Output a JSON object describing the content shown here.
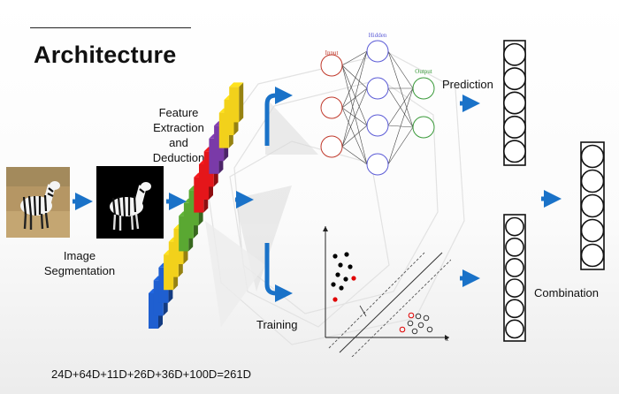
{
  "slide": {
    "title": "Architecture",
    "labels": {
      "feature_extraction": [
        "Feature",
        "Extraction",
        "and",
        "Deduction"
      ],
      "image_segmentation": [
        "Image",
        "Segmentation"
      ],
      "prediction": "Prediction",
      "training": "Training",
      "combination": "Combination",
      "dimension_sum": "24D+64D+11D+26D+36D+100D=261D"
    },
    "neural_net": {
      "layer_titles": [
        "Input",
        "Hidden",
        "Output"
      ],
      "layer_colors": [
        "#c0392b",
        "#5b5bd6",
        "#3a9a3a"
      ]
    },
    "feature_blocks": {
      "order": [
        "blue",
        "blue",
        "blue",
        "yellow",
        "yellow",
        "yellow",
        "green",
        "green",
        "green",
        "red",
        "red",
        "red",
        "purple",
        "purple",
        "yellow",
        "yellow",
        "yellow"
      ],
      "colors": {
        "blue": "#1f5fd0",
        "yellow": "#f2d11b",
        "green": "#5aa832",
        "red": "#e5161a",
        "purple": "#7a3aa8"
      }
    },
    "accent_color": "#1a72c8"
  }
}
